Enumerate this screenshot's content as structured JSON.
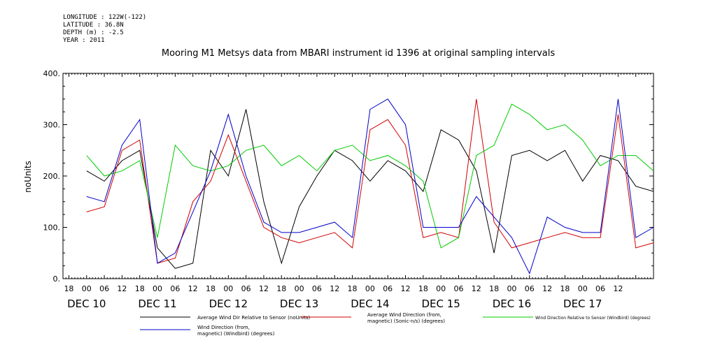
{
  "header": {
    "longitude": "LONGITUDE : 122W(-122)",
    "latitude": "LATITUDE : 36.8N",
    "depth": "DEPTH (m) : -2.5",
    "year": "YEAR : 2011"
  },
  "chart_data": {
    "type": "line",
    "title": "Mooring M1 Metsys data from MBARI instrument id 1396 at original sampling intervals",
    "xlabel": "",
    "ylabel": "noUnits",
    "ylim": [
      0,
      400
    ],
    "yticks": [
      "0.",
      "100.",
      "200.",
      "300.",
      "400."
    ],
    "x_hour_ticks": [
      "18",
      "00",
      "06",
      "12",
      "18",
      "00",
      "06",
      "12",
      "18",
      "00",
      "06",
      "12",
      "18",
      "00",
      "06",
      "12",
      "18",
      "00",
      "06",
      "12",
      "18",
      "00",
      "06",
      "12",
      "18",
      "00",
      "06",
      "12",
      "18",
      "00",
      "06",
      "12"
    ],
    "x_day_labels": [
      "DEC 10",
      "DEC 11",
      "DEC 12",
      "DEC 13",
      "DEC 14",
      "DEC 15",
      "DEC 16",
      "DEC 17"
    ],
    "x_hours_since_dec10_0000": [
      0,
      6,
      12,
      18,
      24,
      30,
      36,
      42,
      48,
      54,
      60,
      66,
      72,
      78,
      84,
      90,
      96,
      102,
      108,
      114,
      120,
      126,
      132,
      138,
      144,
      150,
      156,
      162,
      168,
      174,
      180,
      186,
      192
    ],
    "series": [
      {
        "name": "Average Wind Dir Relative to Sensor (noUnits)",
        "color": "#000000",
        "values": [
          210,
          190,
          230,
          250,
          60,
          20,
          30,
          250,
          200,
          330,
          150,
          30,
          140,
          200,
          250,
          230,
          190,
          230,
          210,
          170,
          290,
          270,
          210,
          50,
          240,
          250,
          230,
          250,
          190,
          240,
          230,
          180,
          170
        ]
      },
      {
        "name": "Average Wind Direction (from, magnetic) (Sonic-n/s) (degrees)",
        "color": "#d00000",
        "values": [
          130,
          140,
          250,
          270,
          30,
          40,
          150,
          190,
          280,
          190,
          100,
          80,
          70,
          80,
          90,
          60,
          290,
          310,
          260,
          80,
          90,
          80,
          350,
          110,
          60,
          70,
          80,
          90,
          80,
          80,
          320,
          60,
          70
        ]
      },
      {
        "name": "Wind Direction Relative to Sensor (Windbird) (degrees)",
        "color": "#00cc00",
        "values": [
          240,
          200,
          210,
          230,
          80,
          260,
          220,
          210,
          220,
          250,
          260,
          220,
          240,
          210,
          250,
          260,
          230,
          240,
          220,
          190,
          60,
          80,
          240,
          260,
          340,
          320,
          290,
          300,
          270,
          220,
          240,
          240,
          210
        ]
      },
      {
        "name": "Wind Direction (from, magnetic) (Windbird) (degrees)",
        "color": "#0000cc",
        "values": [
          160,
          150,
          260,
          310,
          30,
          50,
          130,
          210,
          320,
          200,
          110,
          90,
          90,
          100,
          110,
          80,
          330,
          350,
          300,
          100,
          100,
          100,
          160,
          120,
          80,
          10,
          120,
          100,
          90,
          90,
          350,
          80,
          100
        ]
      }
    ]
  },
  "legend": {
    "items": [
      "Average Wind Dir Relative to Sensor (noUnits)",
      "Average Wind Direction (from, magnetic) (Sonic-n/s) (degrees)",
      "Wind Direction Relative to Sensor (Windbird) (degrees)",
      "Wind Direction (from, magnetic) (Windbird) (degrees)"
    ],
    "item1_line1": "Average Wind Direction (from,",
    "item1_line2": "magnetic) (Sonic-n/s) (degrees)",
    "item3_line1": "Wind Direction (from,",
    "item3_line2": "magnetic) (Windbird) (degrees)"
  }
}
